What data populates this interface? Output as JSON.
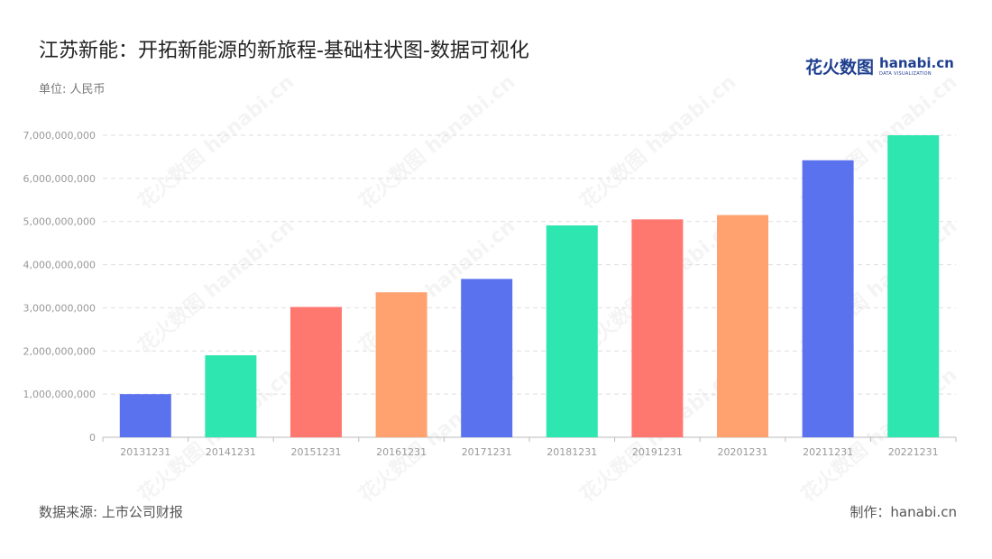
{
  "header": {
    "title": "江苏新能：开拓新能源的新旅程-基础柱状图-数据可视化",
    "unit": "单位: 人民币"
  },
  "logo": {
    "cn": "花火数图",
    "en": "hanabi.cn",
    "sub": "DATA VISUALIZATION"
  },
  "footer": {
    "source": "数据来源: 上市公司财报",
    "maker": "制作：hanabi.cn"
  },
  "chart_data": {
    "type": "bar",
    "categories": [
      "20131231",
      "20141231",
      "20151231",
      "20161231",
      "20171231",
      "20181231",
      "20191231",
      "20201231",
      "20211231",
      "20221231"
    ],
    "values": [
      1000000000,
      1900000000,
      3020000000,
      3360000000,
      3670000000,
      4910000000,
      5050000000,
      5150000000,
      6420000000,
      7000000000
    ],
    "colors": [
      "#5b72ee",
      "#2ee6b0",
      "#ff7870",
      "#ffa270",
      "#5b72ee",
      "#2ee6b0",
      "#ff7870",
      "#ffa270",
      "#5b72ee",
      "#2ee6b0"
    ],
    "ylim": [
      0,
      7000000000
    ],
    "yticks": [
      {
        "value": 0,
        "label": "0"
      },
      {
        "value": 1000000000,
        "label": "1,000,000,000"
      },
      {
        "value": 2000000000,
        "label": "2,000,000,000"
      },
      {
        "value": 3000000000,
        "label": "3,000,000,000"
      },
      {
        "value": 4000000000,
        "label": "4,000,000,000"
      },
      {
        "value": 5000000000,
        "label": "5,000,000,000"
      },
      {
        "value": 6000000000,
        "label": "6,000,000,000"
      },
      {
        "value": 7000000000,
        "label": "7,000,000,000"
      }
    ],
    "grid": true,
    "legend": "none"
  }
}
